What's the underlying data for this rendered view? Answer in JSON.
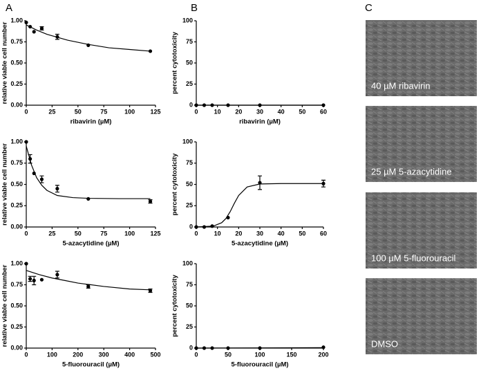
{
  "panel_labels": [
    "A",
    "B",
    "C"
  ],
  "chart_data": [
    {
      "type": "scatter",
      "xlabel": "ribavirin (µM)",
      "ylabel": "relative viable cell number",
      "xlim": [
        0,
        125
      ],
      "xticks": [
        0,
        25,
        50,
        75,
        100,
        125
      ],
      "ylim": [
        0,
        1
      ],
      "yticks": [
        {
          "value": 0,
          "label": "0.00"
        },
        0.25,
        {
          "value": 0.5,
          "label": "0.50"
        },
        0.75,
        {
          "value": 1,
          "label": "1.00"
        }
      ],
      "x": [
        0,
        3.75,
        7.5,
        15,
        30,
        60,
        120
      ],
      "values": [
        0.98,
        0.93,
        0.87,
        0.91,
        0.81,
        0.71,
        0.64
      ],
      "errors": [
        null,
        null,
        null,
        0.02,
        0.03,
        null,
        null
      ],
      "curve": {
        "x": [
          0,
          10,
          20,
          40,
          60,
          80,
          100,
          120
        ],
        "values": [
          0.95,
          0.89,
          0.84,
          0.77,
          0.72,
          0.68,
          0.66,
          0.64
        ]
      }
    },
    {
      "type": "scatter",
      "xlabel": "ribavirin (µM)",
      "ylabel": "percent cytotoxicity",
      "xlim": [
        0,
        60
      ],
      "xticks": [
        0,
        10,
        20,
        30,
        40,
        50,
        60
      ],
      "ylim": [
        0,
        100
      ],
      "yticks": [
        0,
        25,
        50,
        75,
        100
      ],
      "x": [
        0,
        3.75,
        7.5,
        15,
        30,
        60
      ],
      "values": [
        0,
        0,
        0,
        0,
        0,
        0
      ],
      "errors": [
        null,
        null,
        null,
        null,
        null,
        null
      ],
      "curve": {
        "x": [
          0,
          60
        ],
        "values": [
          0,
          0
        ]
      }
    },
    {
      "type": "scatter",
      "xlabel": "5-azacytidine (µM)",
      "ylabel": "relative viable cell number",
      "xlim": [
        0,
        125
      ],
      "xticks": [
        0,
        25,
        50,
        75,
        100,
        125
      ],
      "ylim": [
        0,
        1
      ],
      "yticks": [
        {
          "value": 0,
          "label": "0.00"
        },
        0.25,
        {
          "value": 0.5,
          "label": "0.50"
        },
        0.75,
        {
          "value": 1,
          "label": "1.00"
        }
      ],
      "x": [
        0,
        3.75,
        7.5,
        15,
        30,
        60,
        120
      ],
      "values": [
        1.0,
        0.8,
        0.63,
        0.56,
        0.45,
        0.33,
        0.3
      ],
      "errors": [
        null,
        0.05,
        null,
        0.04,
        0.04,
        null,
        0.02
      ],
      "curve": {
        "x": [
          0,
          5,
          10,
          15,
          20,
          30,
          45,
          60,
          90,
          120
        ],
        "values": [
          0.95,
          0.73,
          0.58,
          0.49,
          0.43,
          0.37,
          0.345,
          0.337,
          0.333,
          0.333
        ]
      }
    },
    {
      "type": "scatter",
      "xlabel": "5-azacytidine (µM)",
      "ylabel": "percent cytotoxicity",
      "xlim": [
        0,
        60
      ],
      "xticks": [
        0,
        10,
        20,
        30,
        40,
        50,
        60
      ],
      "ylim": [
        0,
        100
      ],
      "yticks": [
        0,
        25,
        50,
        75,
        100
      ],
      "x": [
        0,
        3.75,
        7.5,
        15,
        30,
        60
      ],
      "values": [
        0,
        0,
        1,
        11,
        52,
        51
      ],
      "errors": [
        null,
        null,
        null,
        null,
        8,
        4
      ],
      "curve": {
        "x": [
          0,
          8,
          12,
          14,
          16,
          18,
          20,
          24,
          30,
          40,
          60
        ],
        "values": [
          0,
          1,
          5,
          10,
          18,
          28,
          37,
          47,
          50.5,
          51,
          51
        ]
      }
    },
    {
      "type": "scatter",
      "xlabel": "5-fluorouracil (µM)",
      "ylabel": "relative viable cell number",
      "xlim": [
        0,
        500
      ],
      "xticks": [
        0,
        100,
        200,
        300,
        400,
        500
      ],
      "ylim": [
        0,
        1
      ],
      "yticks": [
        {
          "value": 0,
          "label": "0.00"
        },
        0.25,
        {
          "value": 0.5,
          "label": "0.50"
        },
        0.75,
        {
          "value": 1,
          "label": "1.00"
        }
      ],
      "x": [
        0,
        15,
        30,
        60,
        120,
        240,
        480
      ],
      "values": [
        1.0,
        0.82,
        0.8,
        0.81,
        0.87,
        0.73,
        0.68
      ],
      "errors": [
        null,
        0.03,
        0.05,
        null,
        0.04,
        0.02,
        0.02
      ],
      "curve": {
        "x": [
          0,
          50,
          100,
          150,
          200,
          300,
          400,
          480
        ],
        "values": [
          0.92,
          0.87,
          0.83,
          0.8,
          0.77,
          0.73,
          0.7,
          0.69
        ]
      }
    },
    {
      "type": "scatter",
      "xlabel": "5-fluorouracil (µM)",
      "ylabel": "percent cytotoxicity",
      "xlim": [
        0,
        200
      ],
      "xticks": [
        0,
        50,
        100,
        150,
        200
      ],
      "ylim": [
        0,
        100
      ],
      "yticks": [
        0,
        25,
        50,
        75,
        100
      ],
      "x": [
        0,
        12.5,
        25,
        50,
        100,
        200
      ],
      "values": [
        0,
        0,
        0,
        0,
        0,
        1
      ],
      "errors": [
        null,
        null,
        null,
        null,
        null,
        null
      ],
      "curve": {
        "x": [
          0,
          200
        ],
        "values": [
          0,
          0.5
        ]
      }
    }
  ],
  "micrographs": [
    {
      "label": "40 µM ribavirin"
    },
    {
      "label": "25 µM 5-azacytidine"
    },
    {
      "label": "100 µM 5-fluorouracil"
    },
    {
      "label": "DMSO"
    }
  ]
}
